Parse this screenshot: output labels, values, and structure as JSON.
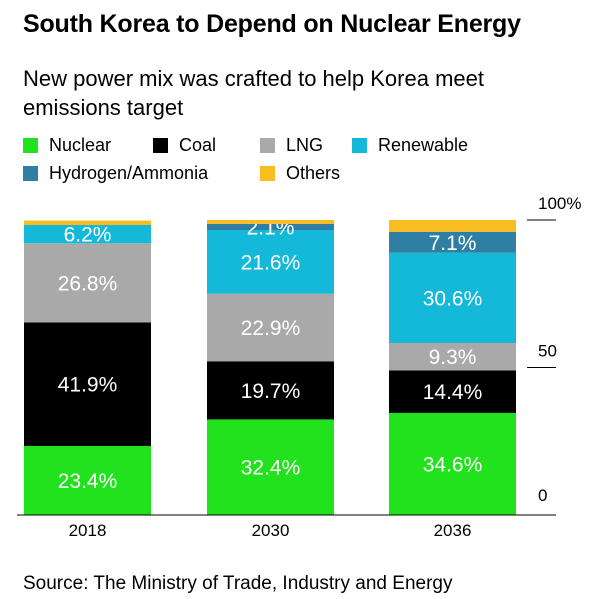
{
  "title": "South Korea to Depend on Nuclear Energy",
  "subtitle": "New power mix was crafted to help Korea meet emissions target",
  "source": "Source: The Ministry of Trade, Industry and Energy",
  "chart_data": {
    "type": "bar",
    "stacked": true,
    "categories": [
      "2018",
      "2030",
      "2036"
    ],
    "series": [
      {
        "name": "Nuclear",
        "color": "#22e21e",
        "values": [
          23.4,
          32.4,
          34.6
        ],
        "labels": [
          "23.4%",
          "32.4%",
          "34.6%"
        ]
      },
      {
        "name": "Coal",
        "color": "#000000",
        "values": [
          41.9,
          19.7,
          14.4
        ],
        "labels": [
          "41.9%",
          "19.7%",
          "14.4%"
        ]
      },
      {
        "name": "LNG",
        "color": "#a9a9a9",
        "values": [
          26.8,
          22.9,
          9.3
        ],
        "labels": [
          "26.8%",
          "22.9%",
          "9.3%"
        ]
      },
      {
        "name": "Renewable",
        "color": "#14b8d8",
        "values": [
          6.2,
          21.6,
          30.6
        ],
        "labels": [
          "6.2%",
          "21.6%",
          "30.6%"
        ]
      },
      {
        "name": "Hydrogen/Ammonia",
        "color": "#2e7fa3",
        "values": [
          0,
          2.1,
          7.1
        ],
        "labels": [
          "",
          "2.1%",
          "7.1%"
        ]
      },
      {
        "name": "Others",
        "color": "#f7bd21",
        "values": [
          1.5,
          1.3,
          4.0
        ],
        "labels": [
          "",
          "",
          ""
        ]
      }
    ],
    "y_axis": {
      "ticks": [
        "0",
        "50",
        "100%"
      ],
      "tick_values": [
        0,
        50,
        100
      ],
      "ylim": [
        0,
        100
      ]
    },
    "legend_position": "top-left",
    "grid": false
  }
}
